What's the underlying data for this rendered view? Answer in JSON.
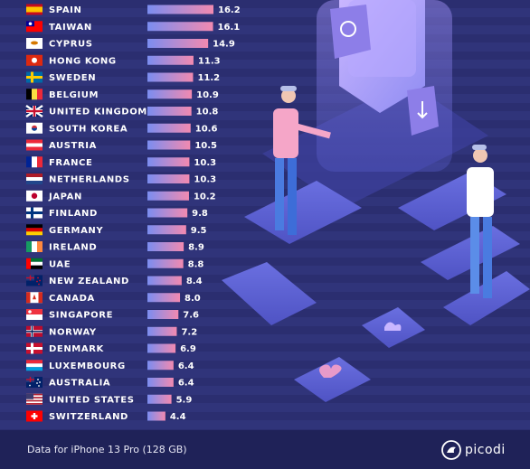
{
  "chart_data": {
    "type": "bar",
    "orientation": "horizontal",
    "categories": [
      "SPAIN",
      "TAIWAN",
      "CYPRUS",
      "HONG KONG",
      "SWEDEN",
      "BELGIUM",
      "UNITED KINGDOM",
      "SOUTH KOREA",
      "AUSTRIA",
      "FRANCE",
      "NETHERLANDS",
      "JAPAN",
      "FINLAND",
      "GERMANY",
      "IRELAND",
      "UAE",
      "NEW ZEALAND",
      "CANADA",
      "SINGAPORE",
      "NORWAY",
      "DENMARK",
      "LUXEMBOURG",
      "AUSTRALIA",
      "UNITED STATES",
      "SWITZERLAND"
    ],
    "values": [
      16.2,
      16.1,
      14.9,
      11.3,
      11.2,
      10.9,
      10.8,
      10.6,
      10.5,
      10.3,
      10.3,
      10.2,
      9.8,
      9.5,
      8.9,
      8.8,
      8.4,
      8.0,
      7.6,
      7.2,
      6.9,
      6.4,
      6.4,
      5.9,
      4.4
    ],
    "value_labels": [
      "16.2",
      "16.1",
      "14.9",
      "11.3",
      "11.2",
      "10.9",
      "10.8",
      "10.6",
      "10.5",
      "10.3",
      "10.3",
      "10.2",
      "9.8",
      "9.5",
      "8.9",
      "8.8",
      "8.4",
      "8.0",
      "7.6",
      "7.2",
      "6.9",
      "6.4",
      "6.4",
      "5.9",
      "4.4"
    ],
    "flags": [
      "spain-flag",
      "taiwan-flag",
      "cyprus-flag",
      "hong-kong-flag",
      "sweden-flag",
      "belgium-flag",
      "united-kingdom-flag",
      "south-korea-flag",
      "austria-flag",
      "france-flag",
      "netherlands-flag",
      "japan-flag",
      "finland-flag",
      "germany-flag",
      "ireland-flag",
      "uae-flag",
      "new-zealand-flag",
      "canada-flag",
      "singapore-flag",
      "norway-flag",
      "denmark-flag",
      "luxembourg-flag",
      "australia-flag",
      "united-states-flag",
      "switzerland-flag"
    ],
    "xlim": [
      0,
      16.2
    ],
    "bar_gradient": [
      "#7b8df0",
      "#f28ab0"
    ],
    "grid": false,
    "legend": "none"
  },
  "footer": {
    "note": "Data for iPhone 13 Pro (128 GB)",
    "brand": "picodi"
  },
  "colors": {
    "background": "#2a2d6e",
    "footer": "#1f2258",
    "text": "#ffffff"
  }
}
